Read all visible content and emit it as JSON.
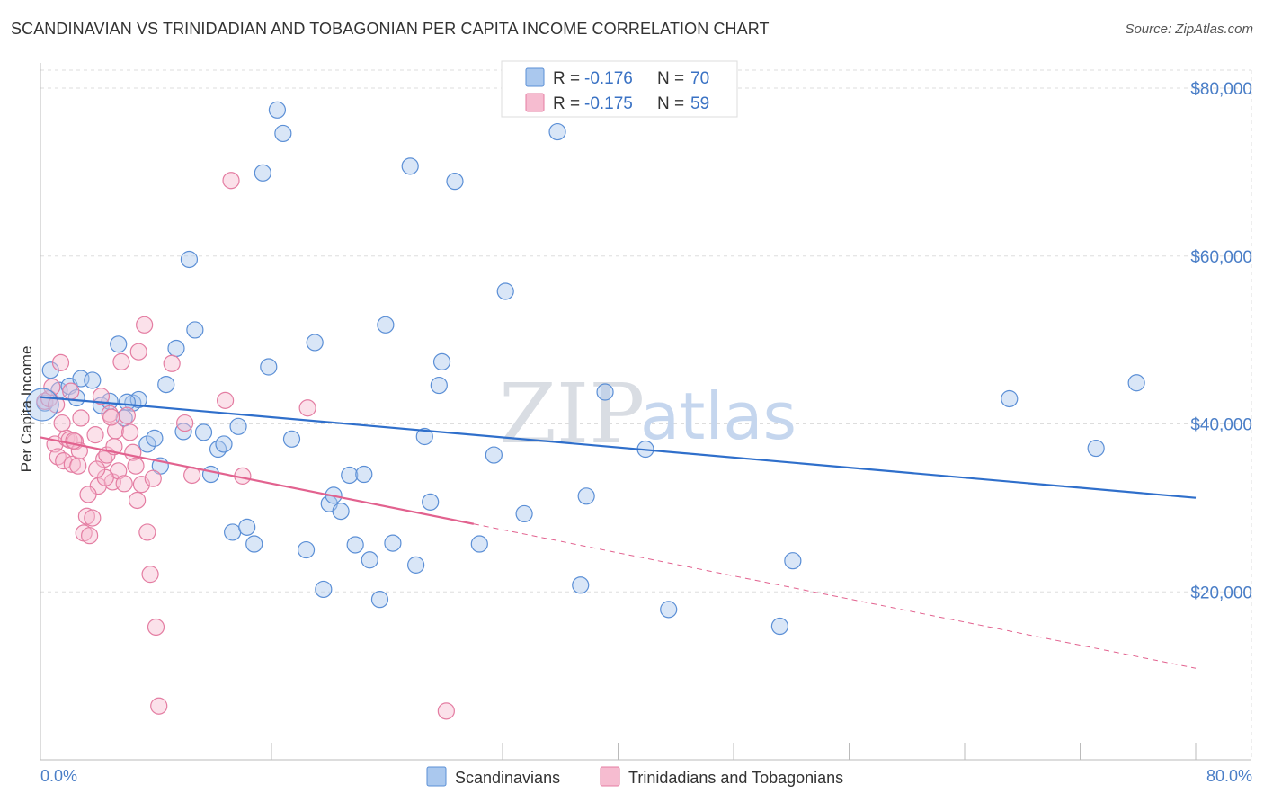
{
  "title": "SCANDINAVIAN VS TRINIDADIAN AND TOBAGONIAN PER CAPITA INCOME CORRELATION CHART",
  "source": "Source: ZipAtlas.com",
  "watermark": {
    "zip": "ZIP",
    "atlas": "atlas"
  },
  "colors": {
    "blue_fill": "#aac8ee",
    "blue_stroke": "#5b8fd6",
    "blue_line": "#2f6fcb",
    "pink_fill": "#f6bcd0",
    "pink_stroke": "#e47da2",
    "pink_line": "#e2628f",
    "grid": "#dddddd",
    "axis_label": "#4a7ec7"
  },
  "legend": {
    "rows": [
      {
        "r_label": "R = ",
        "r_value": "-0.176",
        "n_label": "N = ",
        "n_value": "70"
      },
      {
        "r_label": "R = ",
        "r_value": "-0.175",
        "n_label": "N = ",
        "n_value": "59"
      }
    ]
  },
  "bottom_legend": [
    "Scandinavians",
    "Trinidadians and Tobagonians"
  ],
  "chart_data": {
    "type": "scatter",
    "title": "SCANDINAVIAN VS TRINIDADIAN AND TOBAGONIAN PER CAPITA INCOME CORRELATION CHART",
    "xlabel": "",
    "ylabel": "Per Capita Income",
    "xlim": [
      0,
      80
    ],
    "ylim": [
      0,
      83000
    ],
    "x_tick_labels": [
      "0.0%",
      "80.0%"
    ],
    "y_ticks": [
      20000,
      40000,
      60000,
      80000
    ],
    "y_tick_labels": [
      "$20,000",
      "$40,000",
      "$60,000",
      "$80,000"
    ],
    "grid": true,
    "legend_position": "top-center",
    "series": [
      {
        "name": "Scandinavians",
        "r": -0.176,
        "n": 70,
        "trend": {
          "x": [
            0,
            80
          ],
          "y": [
            43200,
            31200
          ],
          "dashed_from": null
        },
        "points": [
          [
            0.3,
            42500
          ],
          [
            0.7,
            46400
          ],
          [
            1.3,
            44000
          ],
          [
            2.0,
            44500
          ],
          [
            2.8,
            45400
          ],
          [
            3.6,
            45200
          ],
          [
            4.2,
            42200
          ],
          [
            4.8,
            42700
          ],
          [
            5.4,
            49500
          ],
          [
            5.8,
            40700
          ],
          [
            6.4,
            42500
          ],
          [
            6.8,
            42900
          ],
          [
            7.4,
            37600
          ],
          [
            7.9,
            38300
          ],
          [
            8.3,
            35000
          ],
          [
            8.7,
            44700
          ],
          [
            9.4,
            49000
          ],
          [
            9.9,
            39100
          ],
          [
            10.3,
            59600
          ],
          [
            10.7,
            51200
          ],
          [
            11.3,
            39000
          ],
          [
            11.8,
            34000
          ],
          [
            12.3,
            37000
          ],
          [
            12.7,
            37600
          ],
          [
            13.3,
            27100
          ],
          [
            13.7,
            39700
          ],
          [
            14.3,
            27700
          ],
          [
            14.8,
            25700
          ],
          [
            15.4,
            69900
          ],
          [
            15.8,
            46800
          ],
          [
            16.4,
            77400
          ],
          [
            16.8,
            74600
          ],
          [
            17.4,
            38200
          ],
          [
            18.4,
            25000
          ],
          [
            19.0,
            49700
          ],
          [
            19.6,
            20300
          ],
          [
            20.0,
            30500
          ],
          [
            20.3,
            31500
          ],
          [
            20.8,
            29600
          ],
          [
            21.4,
            33900
          ],
          [
            21.8,
            25600
          ],
          [
            22.4,
            34000
          ],
          [
            22.8,
            23800
          ],
          [
            23.5,
            19100
          ],
          [
            23.9,
            51800
          ],
          [
            24.4,
            25800
          ],
          [
            25.6,
            70700
          ],
          [
            26.0,
            23200
          ],
          [
            26.6,
            38500
          ],
          [
            27.0,
            30700
          ],
          [
            27.6,
            44600
          ],
          [
            27.8,
            47400
          ],
          [
            28.7,
            68900
          ],
          [
            30.4,
            25700
          ],
          [
            31.4,
            36300
          ],
          [
            32.2,
            55800
          ],
          [
            33.5,
            29300
          ],
          [
            35.8,
            74800
          ],
          [
            37.4,
            20800
          ],
          [
            37.8,
            31400
          ],
          [
            39.1,
            43800
          ],
          [
            41.9,
            37000
          ],
          [
            43.5,
            17900
          ],
          [
            51.2,
            15900
          ],
          [
            52.1,
            23700
          ],
          [
            67.1,
            43000
          ],
          [
            73.1,
            37100
          ],
          [
            75.9,
            44900
          ],
          [
            2.5,
            43100
          ],
          [
            6.0,
            42600
          ]
        ]
      },
      {
        "name": "Trinidadians and Tobagonians",
        "r": -0.175,
        "n": 59,
        "trend": {
          "x": [
            0,
            80
          ],
          "y": [
            38400,
            10900
          ],
          "dashed_from": 30
        },
        "points": [
          [
            0.3,
            42700
          ],
          [
            0.6,
            43000
          ],
          [
            0.8,
            44400
          ],
          [
            1.0,
            37600
          ],
          [
            1.2,
            36100
          ],
          [
            1.4,
            47300
          ],
          [
            1.6,
            35600
          ],
          [
            1.8,
            38300
          ],
          [
            2.0,
            38100
          ],
          [
            2.2,
            35200
          ],
          [
            2.4,
            37900
          ],
          [
            2.6,
            35000
          ],
          [
            2.8,
            40700
          ],
          [
            3.0,
            27000
          ],
          [
            3.2,
            29000
          ],
          [
            3.4,
            26700
          ],
          [
            3.6,
            28800
          ],
          [
            3.8,
            38700
          ],
          [
            4.0,
            32600
          ],
          [
            4.2,
            43300
          ],
          [
            4.4,
            35800
          ],
          [
            4.6,
            36300
          ],
          [
            4.8,
            41200
          ],
          [
            5.0,
            33100
          ],
          [
            5.2,
            39200
          ],
          [
            5.4,
            34400
          ],
          [
            5.6,
            47400
          ],
          [
            5.8,
            32900
          ],
          [
            6.0,
            41000
          ],
          [
            6.2,
            39000
          ],
          [
            6.4,
            36600
          ],
          [
            6.6,
            35000
          ],
          [
            6.8,
            48600
          ],
          [
            7.0,
            32800
          ],
          [
            7.2,
            51800
          ],
          [
            7.4,
            27100
          ],
          [
            7.6,
            22100
          ],
          [
            7.8,
            33500
          ],
          [
            8.0,
            15800
          ],
          [
            8.2,
            6400
          ],
          [
            9.1,
            47200
          ],
          [
            10.0,
            40100
          ],
          [
            10.5,
            33900
          ],
          [
            12.8,
            42800
          ],
          [
            13.2,
            69000
          ],
          [
            14.0,
            33800
          ],
          [
            18.5,
            41900
          ],
          [
            28.1,
            5800
          ],
          [
            1.1,
            42300
          ],
          [
            2.1,
            43900
          ],
          [
            3.3,
            31600
          ],
          [
            4.5,
            33600
          ],
          [
            5.1,
            37300
          ],
          [
            6.7,
            30900
          ],
          [
            2.7,
            36800
          ],
          [
            1.5,
            40100
          ],
          [
            3.9,
            34600
          ],
          [
            4.9,
            40800
          ],
          [
            2.3,
            38000
          ]
        ]
      }
    ]
  }
}
